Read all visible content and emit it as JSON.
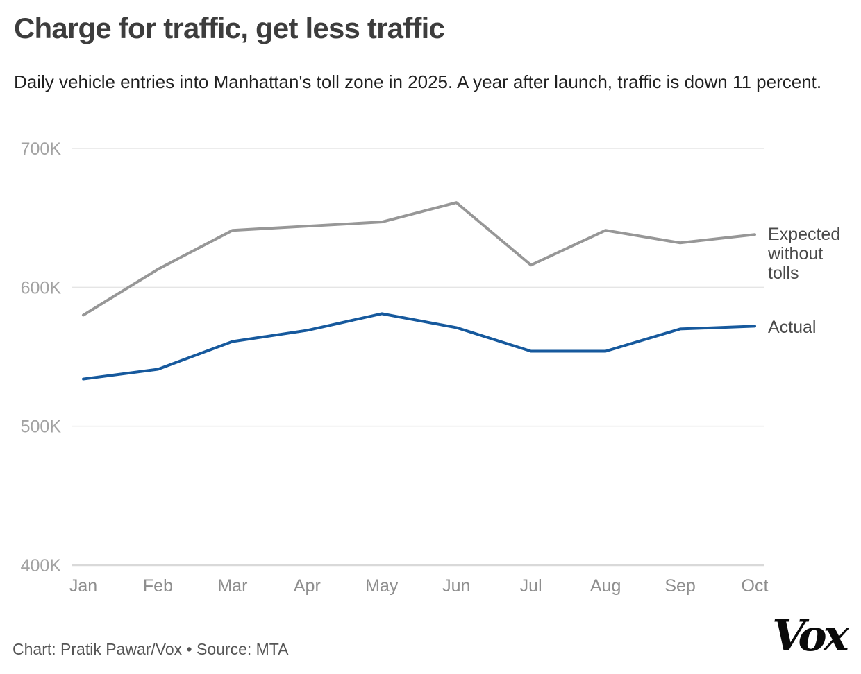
{
  "chart_data": {
    "type": "line",
    "title": "Charge for traffic, get less traffic",
    "subtitle": "Daily vehicle entries into Manhattan's toll zone in 2025. A year after launch, traffic is down 11 percent.",
    "x": [
      "Jan",
      "Feb",
      "Mar",
      "Apr",
      "May",
      "Jun",
      "Jul",
      "Aug",
      "Sep",
      "Oct"
    ],
    "xlabel": "",
    "ylabel": "",
    "ylim": [
      400000,
      700000
    ],
    "yticks": [
      {
        "value": 700000,
        "label": "700K"
      },
      {
        "value": 600000,
        "label": "600K"
      },
      {
        "value": 500000,
        "label": "500K"
      },
      {
        "value": 400000,
        "label": "400K"
      }
    ],
    "grid": "horizontal",
    "legend_position": "right-of-line-ends",
    "series": [
      {
        "name": "Expected without tolls",
        "color": "#979797",
        "values": [
          580000,
          613000,
          641000,
          644000,
          647000,
          661000,
          616000,
          641000,
          632000,
          638000
        ]
      },
      {
        "name": "Actual",
        "color": "#16599d",
        "values": [
          534000,
          541000,
          561000,
          569000,
          581000,
          571000,
          554000,
          554000,
          570000,
          572000
        ]
      }
    ]
  },
  "colors": {
    "expected_line": "#979797",
    "actual_line": "#16599d",
    "gridline": "#e5e5e5",
    "baseline": "#d9d9d9",
    "axis_text": "#a2a2a2",
    "month_text": "#8e8e8e"
  },
  "footer": {
    "credit": "Chart: Pratik Pawar/Vox • Source: MTA",
    "logo_text": "Vox"
  }
}
